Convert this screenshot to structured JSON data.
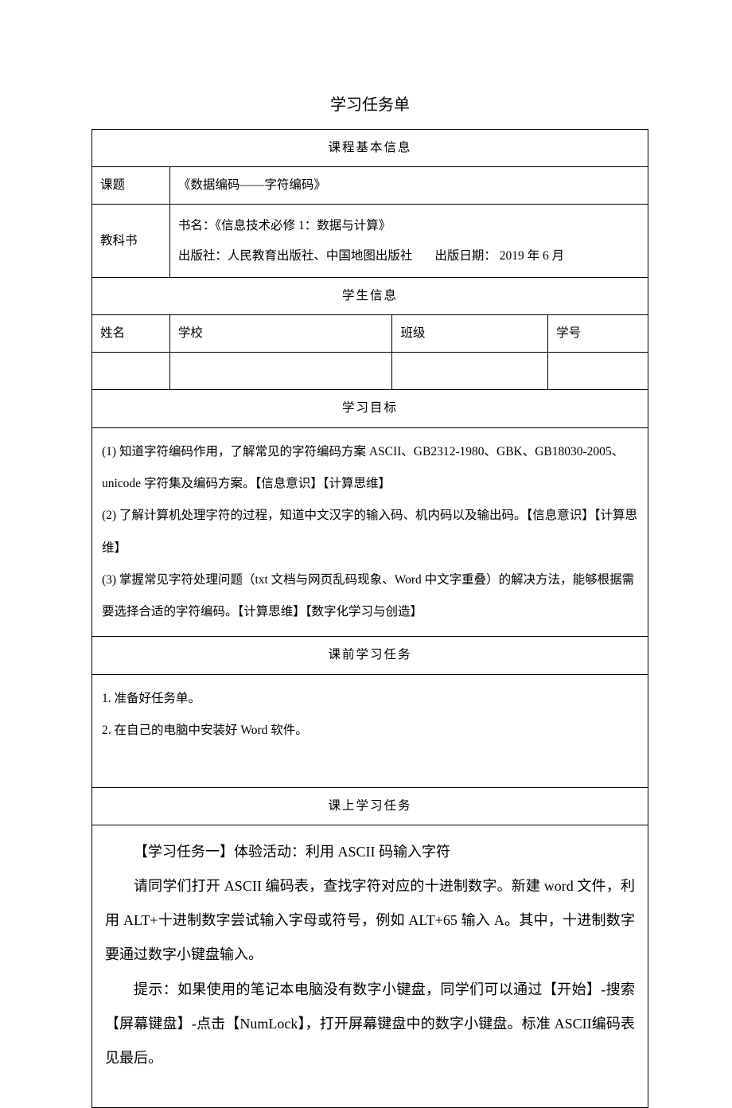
{
  "title": "学习任务单",
  "sections": {
    "course_info": "课程基本信息",
    "student_info": "学生信息",
    "objectives": "学习目标",
    "pretask": "课前学习任务",
    "intask": "课上学习任务"
  },
  "course": {
    "topic_label": "课题",
    "topic_value": "《数据编码——字符编码》",
    "textbook_label": "教科书",
    "book_name_label": "书名：",
    "book_name": "《信息技术必修 1：数据与计算》",
    "publisher_label": "出版社：",
    "publisher": "人民教育出版社、中国地图出版社",
    "pub_date_label": "出版日期：",
    "pub_date": " 2019 年 6 月"
  },
  "student": {
    "name_label": "姓名",
    "school_label": "学校",
    "class_label": "班级",
    "id_label": "学号"
  },
  "objectives": {
    "item1": "(1) 知道字符编码作用，了解常见的字符编码方案 ASCII、GB2312-1980、GBK、GB18030-2005、unicode 字符集及编码方案。【信息意识】【计算思维】",
    "item2": "(2) 了解计算机处理字符的过程，知道中文汉字的输入码、机内码以及输出码。【信息意识】【计算思维】",
    "item3": "(3) 掌握常见字符处理问题（txt 文档与网页乱码现象、Word 中文字重叠）的解决方法，能够根据需要选择合适的字符编码。【计算思维】【数字化学习与创造】"
  },
  "pretask": {
    "item1": "1. 准备好任务单。",
    "item2": "2. 在自己的电脑中安装好 Word 软件。"
  },
  "intask": {
    "heading": "【学习任务一】体验活动：利用 ASCII 码输入字符",
    "para1": "请同学们打开 ASCII 编码表，查找字符对应的十进制数字。新建 word 文件，利用 ALT+十进制数字尝试输入字母或符号，例如 ALT+65 输入 A。其中，十进制数字要通过数字小键盘输入。",
    "para2": "提示：如果使用的笔记本电脑没有数字小键盘，同学们可以通过【开始】-搜索【屏幕键盘】-点击【NumLock】，打开屏幕键盘中的数字小键盘。标准 ASCII编码表见最后。"
  },
  "colors": {
    "border": "#000000",
    "text": "#000000",
    "background": "#ffffff"
  },
  "typography": {
    "body_font": "SimSun",
    "title_fontsize": 20,
    "cell_fontsize": 15.5,
    "task_fontsize": 18
  }
}
